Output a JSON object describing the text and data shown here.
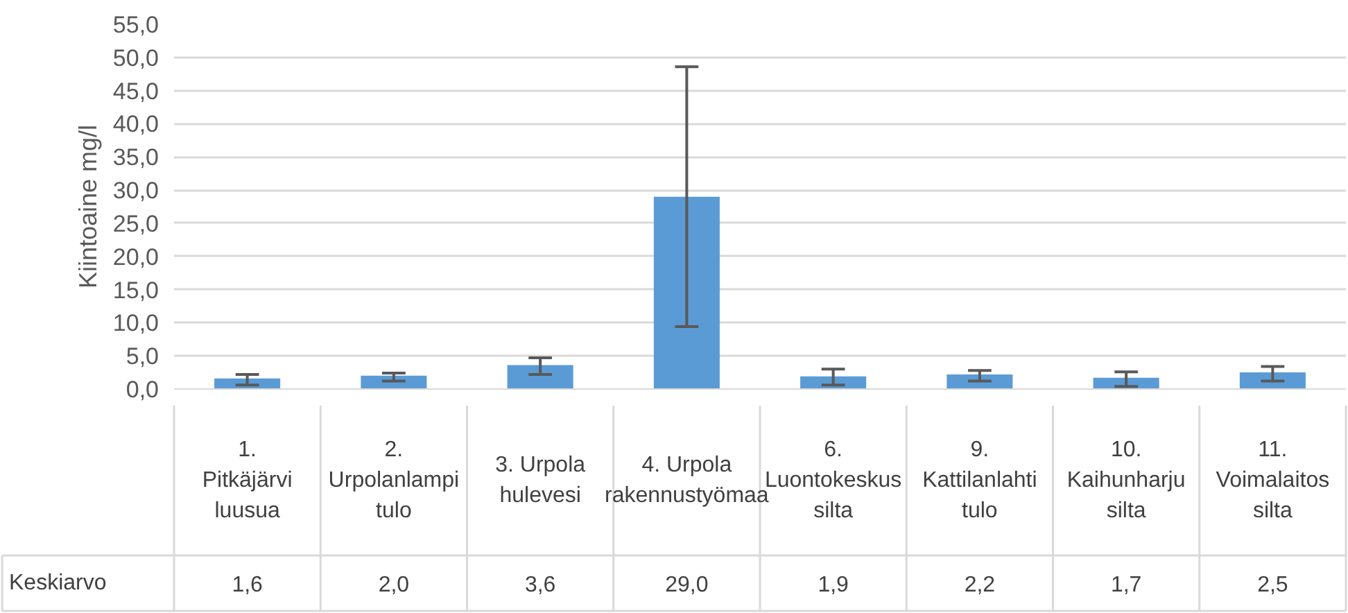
{
  "chart_data": {
    "type": "bar",
    "ylabel": "Kiintoaine mg/l",
    "categories": [
      "1. Pitkäjärvi luusua",
      "2. Urpolanlampi tulo",
      "3. Urpola hulevesi",
      "4. Urpola rakennustyömaa",
      "6. Luontokeskus silta",
      "9. Kattilanlahti tulo",
      "10. Kaihunharju silta",
      "11. Voimalaitos silta"
    ],
    "series": [
      {
        "name": "Keskiarvo",
        "color": "#5b9bd5",
        "values": [
          1.6,
          2.0,
          3.6,
          29.0,
          1.9,
          2.2,
          1.7,
          2.5
        ],
        "value_labels": [
          "1,6",
          "2,0",
          "3,6",
          "29,0",
          "1,9",
          "2,2",
          "1,7",
          "2,5"
        ],
        "errors": [
          [
            0.6,
            2.2
          ],
          [
            1.2,
            2.4
          ],
          [
            2.2,
            4.7
          ],
          [
            9.4,
            48.6
          ],
          [
            0.6,
            3.0
          ],
          [
            1.2,
            2.8
          ],
          [
            0.4,
            2.6
          ],
          [
            1.2,
            3.4
          ]
        ]
      }
    ],
    "ylim": [
      0,
      55
    ],
    "yticks": [
      {
        "value": 0,
        "label": "0,0"
      },
      {
        "value": 5,
        "label": "5,0"
      },
      {
        "value": 10,
        "label": "10,0"
      },
      {
        "value": 15,
        "label": "15,0"
      },
      {
        "value": 20,
        "label": "20,0"
      },
      {
        "value": 25,
        "label": "25,0"
      },
      {
        "value": 30,
        "label": "30,0"
      },
      {
        "value": 35,
        "label": "35,0"
      },
      {
        "value": 40,
        "label": "40,0"
      },
      {
        "value": 45,
        "label": "45,0"
      },
      {
        "value": 50,
        "label": "50,0"
      },
      {
        "value": 55,
        "label": "55,0"
      }
    ],
    "grid": "y"
  }
}
